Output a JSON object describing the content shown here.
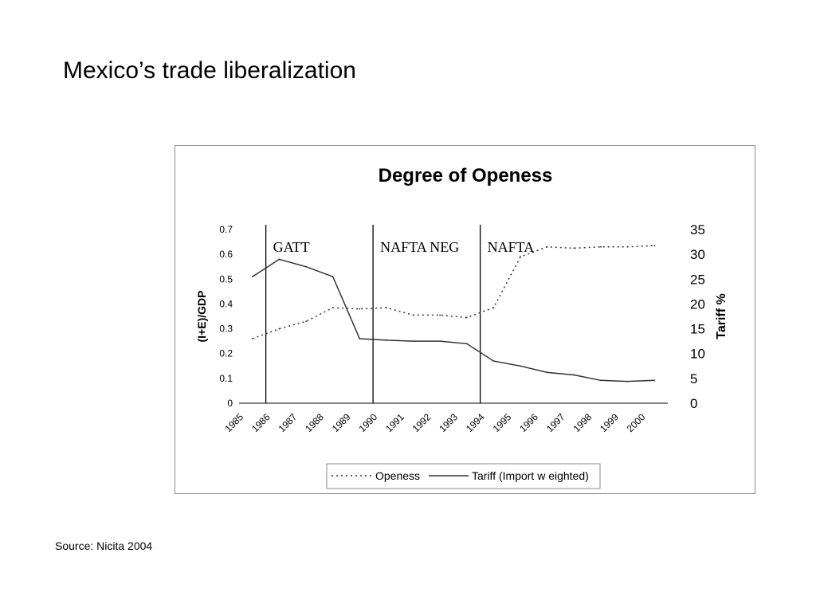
{
  "slide": {
    "title": "Mexico’s trade liberalization",
    "source": "Source: Nicita 2004"
  },
  "chart_data": {
    "type": "line",
    "title": "Degree of Openess",
    "x": [
      "1985",
      "1986",
      "1987",
      "1988",
      "1989",
      "1990",
      "1991",
      "1992",
      "1993",
      "1994",
      "1995",
      "1996",
      "1997",
      "1998",
      "1999",
      "2000"
    ],
    "y_left": {
      "label": "(I+E)/GDP",
      "lim": [
        0,
        0.7
      ],
      "ticks": [
        "0",
        "0.1",
        "0.2",
        "0.3",
        "0.4",
        "0.5",
        "0.6",
        "0.7"
      ]
    },
    "y_right": {
      "label": "Tariff %",
      "lim": [
        0,
        35
      ],
      "ticks": [
        "0",
        "5",
        "10",
        "15",
        "20",
        "25",
        "30",
        "35"
      ]
    },
    "series": [
      {
        "name": "Openess",
        "axis": "left",
        "style": "dotted",
        "values": [
          0.26,
          0.3,
          0.33,
          0.385,
          0.38,
          0.385,
          0.355,
          0.355,
          0.345,
          0.385,
          0.59,
          0.63,
          0.625,
          0.63,
          0.63,
          0.635
        ]
      },
      {
        "name": "Tariff  (Import w eighted)",
        "axis": "right",
        "style": "solid",
        "values": [
          25.5,
          29,
          27.5,
          25.5,
          13,
          12.7,
          12.5,
          12.5,
          12,
          8.5,
          7.5,
          6.2,
          5.7,
          4.6,
          4.4,
          4.6
        ]
      }
    ],
    "annotations": [
      {
        "label": "GATT",
        "x": "1986"
      },
      {
        "label": "NAFTA NEG",
        "x": "1990"
      },
      {
        "label": "NAFTA",
        "x": "1994"
      }
    ],
    "legend_position": "bottom",
    "grid": false
  },
  "colors": {
    "line": "#333333",
    "axis": "#000000",
    "frame": "#8a8a8a"
  }
}
